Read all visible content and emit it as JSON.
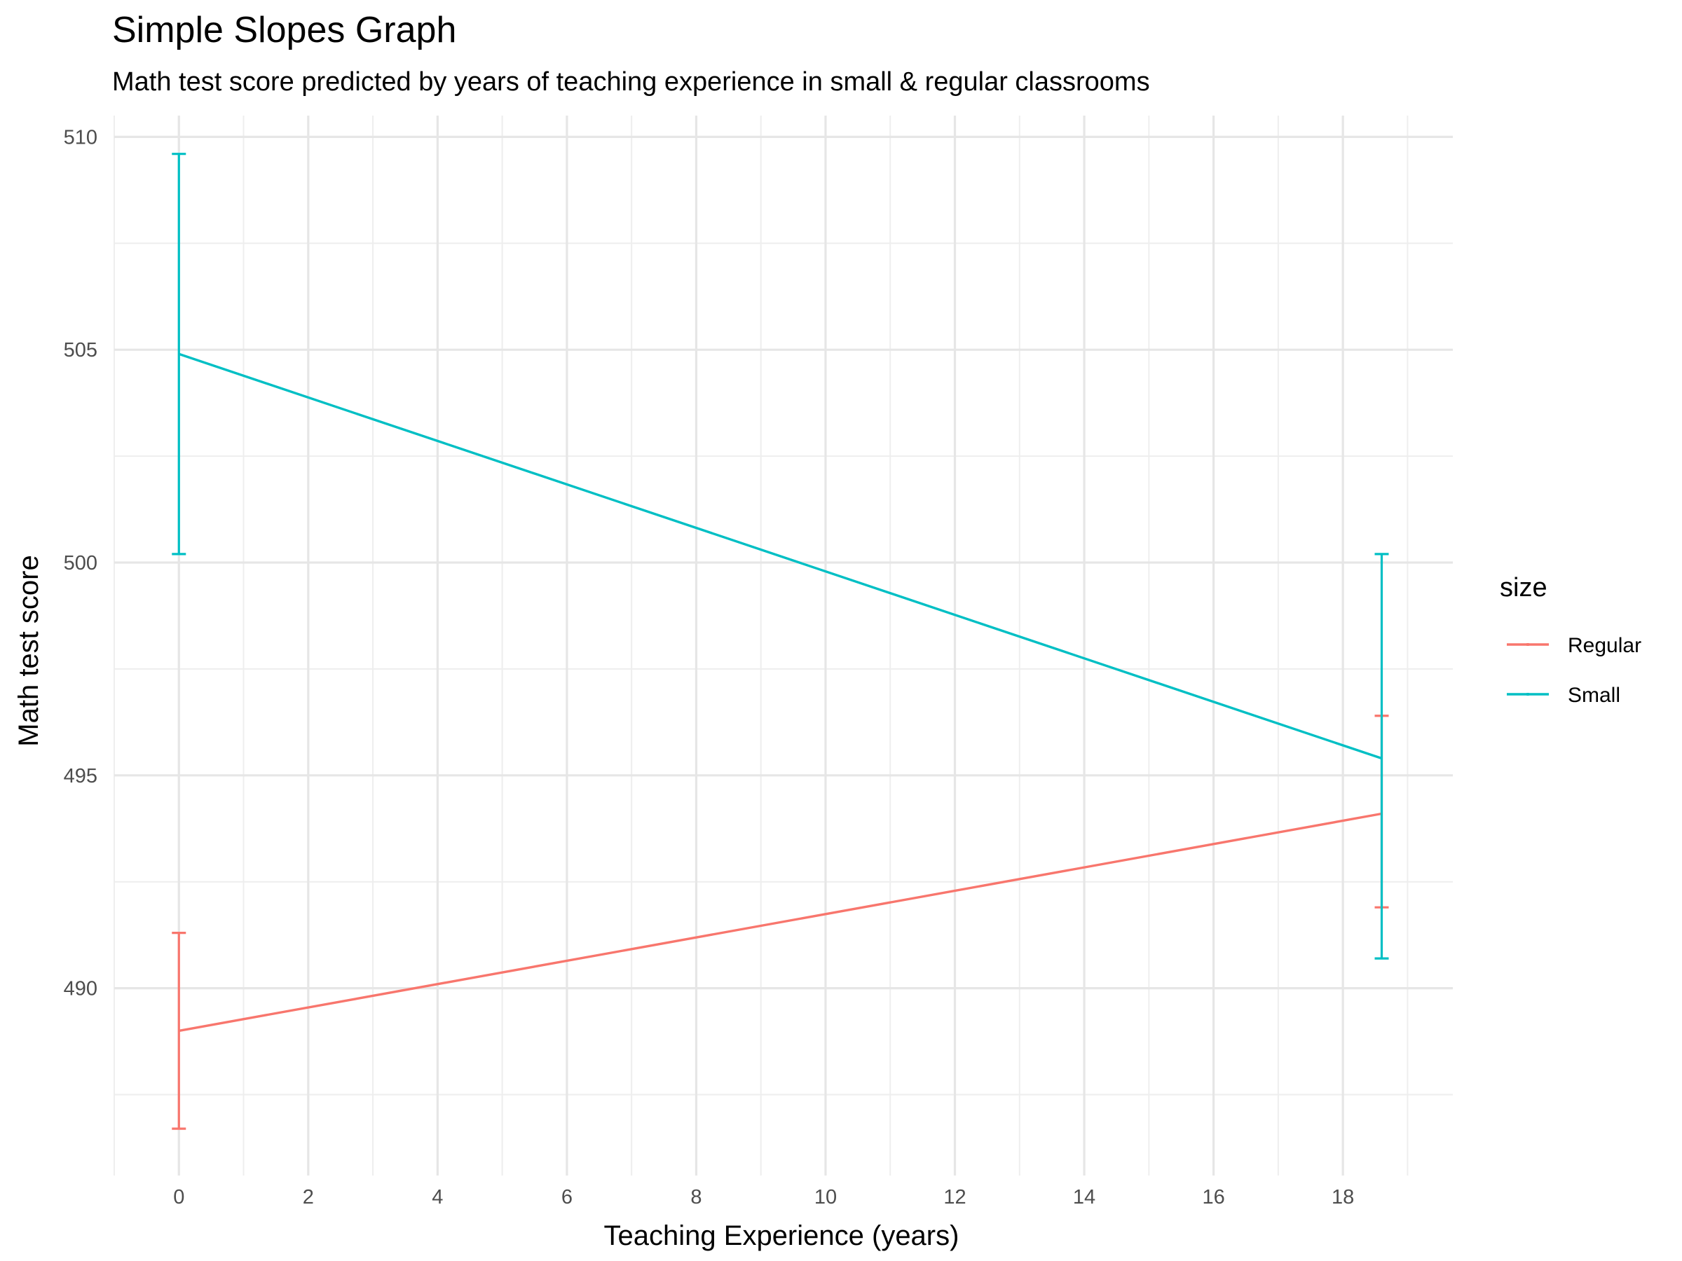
{
  "chart_data": {
    "type": "line",
    "title": "Simple Slopes Graph",
    "subtitle": "Math test score predicted by years of teaching experience in small & regular classrooms",
    "xlabel": "Teaching Experience (years)",
    "ylabel": "Math test score",
    "xlim": [
      -1.0,
      19.7
    ],
    "ylim": [
      485.6,
      510.5
    ],
    "x_ticks": [
      0,
      2,
      4,
      6,
      8,
      10,
      12,
      14,
      16,
      18
    ],
    "x_tick_labels": [
      "0",
      "2",
      "4",
      "6",
      "8",
      "10",
      "12",
      "14",
      "16",
      "18"
    ],
    "x_minor_ticks": [
      -1,
      1,
      3,
      5,
      7,
      9,
      11,
      13,
      15,
      17,
      19
    ],
    "y_ticks": [
      490,
      495,
      500,
      505,
      510
    ],
    "y_tick_labels": [
      "490",
      "495",
      "500",
      "505",
      "510"
    ],
    "y_minor_ticks": [
      487.5,
      492.5,
      497.5,
      502.5,
      507.5
    ],
    "grid": true,
    "legend": {
      "title": "size",
      "position": "right"
    },
    "series": [
      {
        "name": "Regular",
        "color": "#F8766D",
        "x": [
          0,
          18.6
        ],
        "y": [
          489.0,
          494.1
        ],
        "error_lower": [
          486.7,
          491.9
        ],
        "error_upper": [
          491.3,
          496.4
        ]
      },
      {
        "name": "Small",
        "color": "#00BFC4",
        "x": [
          0,
          18.6
        ],
        "y": [
          504.9,
          495.4
        ],
        "error_lower": [
          500.2,
          490.7
        ],
        "error_upper": [
          509.6,
          500.2
        ]
      }
    ]
  }
}
